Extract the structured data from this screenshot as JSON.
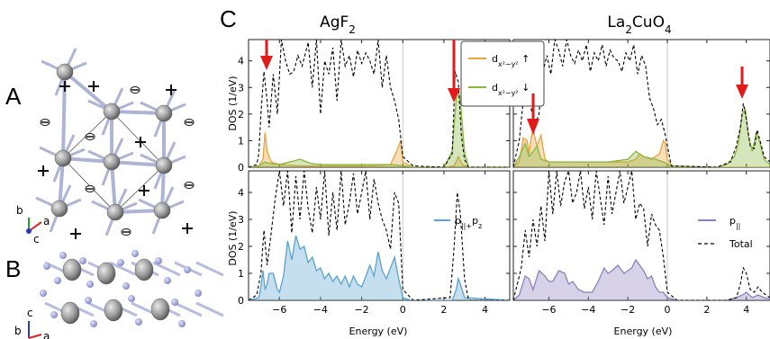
{
  "panels": {
    "A": "A",
    "B": "B",
    "C": "C"
  },
  "titles": {
    "left": "AgF2",
    "right": "La2CuO4"
  },
  "axes": {
    "ylabel_top": "DOS (1/eV)",
    "ylabel_bottom": "DOS (1/eV)",
    "xlabel_left": "Energy (eV)",
    "xlabel_right": "Energy (eV)"
  },
  "legend": {
    "top_up": "dx²−y² ↑",
    "top_down": "dx²−y² ↓",
    "bottom_left": "p||+pz",
    "bottom_right_p": "p||",
    "bottom_right_total": "Total"
  },
  "crystal_axes": {
    "A": {
      "a": "a",
      "b": "b",
      "c": "c"
    },
    "B": {
      "a": "a",
      "b": "b",
      "c": "c"
    }
  },
  "colors": {
    "orange": "#e8a33b",
    "green": "#8ab63f",
    "blue": "#5aa2cf",
    "purple": "#8b7fbe",
    "arrow": "#e11b1b"
  },
  "chart_data": [
    {
      "type": "area",
      "panel": "AgF2-top",
      "xlim": [
        -7.5,
        5.2
      ],
      "ylim": [
        0,
        4.8
      ],
      "xticks": [
        -6,
        -4,
        -2,
        0,
        2,
        4
      ],
      "yticks": [
        0,
        1,
        2,
        3,
        4
      ],
      "series": [
        {
          "name": "dx²−y² ↑",
          "color": "orange",
          "x": [
            -7.5,
            -7.0,
            -6.8,
            -6.7,
            -6.6,
            -6.4,
            -6.0,
            -5.5,
            -5.0,
            -4.0,
            -3.0,
            -2.0,
            -1.5,
            -0.6,
            -0.3,
            -0.2,
            -0.1,
            0.0,
            0.5,
            2.0,
            2.5,
            2.7,
            2.9,
            3.2,
            5.2
          ],
          "y": [
            0,
            0.05,
            0.3,
            1.3,
            0.6,
            0.2,
            0.1,
            0.08,
            0.05,
            0.05,
            0.05,
            0.05,
            0.05,
            0.1,
            0.6,
            0.8,
            1.0,
            0.2,
            0,
            0,
            0.05,
            0.4,
            0.1,
            0,
            0
          ]
        },
        {
          "name": "dx²−y² ↓",
          "color": "green",
          "x": [
            -7.5,
            -7.0,
            -6.7,
            -6.5,
            -6.0,
            -5.5,
            -5.0,
            -4.5,
            -4.0,
            -3.0,
            -2.0,
            -1.5,
            -0.5,
            0.0,
            0.5,
            2.0,
            2.4,
            2.6,
            2.7,
            2.8,
            3.0,
            3.2,
            5.2
          ],
          "y": [
            0,
            0.05,
            0.2,
            0.15,
            0.1,
            0.2,
            0.3,
            0.15,
            0.1,
            0.1,
            0.1,
            0.1,
            0.1,
            0.05,
            0,
            0,
            0.6,
            2.6,
            2.9,
            2.5,
            0.6,
            0,
            0
          ]
        },
        {
          "name": "Total",
          "style": "dashed",
          "x": [
            -7.5,
            -7.1,
            -7.0,
            -6.9,
            -6.75,
            -6.6,
            -6.5,
            -6.3,
            -6.1,
            -5.9,
            -5.7,
            -5.5,
            -5.3,
            -5.1,
            -4.9,
            -4.6,
            -4.4,
            -4.2,
            -4.0,
            -3.8,
            -3.6,
            -3.4,
            -3.2,
            -3.0,
            -2.8,
            -2.6,
            -2.4,
            -2.2,
            -2.0,
            -1.8,
            -1.6,
            -1.4,
            -1.2,
            -1.0,
            -0.8,
            -0.6,
            -0.4,
            -0.2,
            0.0,
            0.5,
            2.0,
            2.4,
            2.55,
            2.7,
            2.85,
            3.0,
            3.2,
            5.2
          ],
          "y": [
            0,
            0.1,
            0.5,
            2.0,
            3.6,
            2.5,
            1.5,
            3.5,
            2.0,
            4.8,
            4.0,
            3.5,
            3.6,
            4.2,
            3.8,
            4.7,
            3.0,
            4.8,
            2.0,
            4.0,
            3.5,
            4.5,
            2.5,
            4.8,
            3.8,
            4.2,
            3.4,
            4.4,
            3.9,
            4.3,
            4.0,
            3.5,
            4.8,
            3.0,
            4.2,
            3.0,
            2.5,
            1.8,
            0.4,
            0.05,
            0,
            0.5,
            3.6,
            3.2,
            1.2,
            0.3,
            0,
            0
          ]
        }
      ]
    },
    {
      "type": "area",
      "panel": "La2CuO4-top",
      "xlim": [
        -7.8,
        5.2
      ],
      "ylim": [
        0,
        4.8
      ],
      "xticks": [
        -6,
        -4,
        -2,
        0,
        2,
        4
      ],
      "series": [
        {
          "name": "dx²−y² ↑",
          "color": "orange",
          "x": [
            -7.8,
            -7.5,
            -7.3,
            -7.1,
            -7.0,
            -6.9,
            -6.8,
            -6.6,
            -6.4,
            -6.2,
            -6.0,
            -5.5,
            -4.5,
            -3.5,
            -2.5,
            -2.0,
            -1.6,
            -1.4,
            -1.2,
            -0.8,
            -0.4,
            -0.2,
            -0.1,
            0.0,
            0.3,
            5.2
          ],
          "y": [
            0,
            0.2,
            1.1,
            1.0,
            0.5,
            1.1,
            1.4,
            0.8,
            1.2,
            0.3,
            0.2,
            0.2,
            0.2,
            0.2,
            0.2,
            0.2,
            0.3,
            0.5,
            0.4,
            0.3,
            0.5,
            1.0,
            0.9,
            0.3,
            0,
            0
          ]
        },
        {
          "name": "dx²−y² ↓",
          "color": "green",
          "x": [
            -7.8,
            -7.5,
            -7.2,
            -7.0,
            -6.8,
            -6.6,
            -6.4,
            -6.0,
            -5.0,
            -4.0,
            -3.0,
            -2.0,
            -1.6,
            -1.2,
            -0.6,
            -0.2,
            0.2,
            2.5,
            3.0,
            3.4,
            3.6,
            3.8,
            3.95,
            4.1,
            4.3,
            4.5,
            4.7,
            4.9,
            5.2
          ],
          "y": [
            0,
            0.4,
            0.9,
            0.4,
            0.6,
            0.8,
            0.3,
            0.2,
            0.2,
            0.2,
            0.2,
            0.3,
            0.6,
            0.4,
            0.3,
            0.2,
            0.05,
            0,
            0.1,
            0.4,
            0.9,
            2.0,
            2.2,
            1.2,
            0.6,
            1.3,
            0.9,
            0.3,
            0.1
          ]
        },
        {
          "name": "Total",
          "style": "dashed",
          "x": [
            -7.8,
            -7.5,
            -7.3,
            -7.1,
            -6.9,
            -6.7,
            -6.5,
            -6.3,
            -6.1,
            -5.9,
            -5.7,
            -5.5,
            -5.3,
            -5.1,
            -4.9,
            -4.7,
            -4.5,
            -4.3,
            -4.1,
            -3.9,
            -3.7,
            -3.5,
            -3.3,
            -3.1,
            -2.9,
            -2.7,
            -2.5,
            -2.3,
            -2.1,
            -1.9,
            -1.7,
            -1.5,
            -1.3,
            -1.1,
            -0.9,
            -0.7,
            -0.5,
            -0.3,
            -0.1,
            0.2,
            2.5,
            3.2,
            3.5,
            3.7,
            3.85,
            4.0,
            4.2,
            4.4,
            4.55,
            4.7,
            4.9,
            5.2
          ],
          "y": [
            0,
            1.0,
            2.5,
            3.0,
            2.2,
            1.6,
            2.0,
            3.6,
            4.2,
            3.5,
            4.8,
            4.4,
            3.8,
            4.8,
            4.2,
            3.9,
            4.4,
            4.0,
            4.6,
            3.6,
            4.3,
            4.0,
            4.6,
            3.8,
            4.4,
            4.1,
            4.0,
            3.6,
            4.3,
            4.0,
            4.6,
            3.5,
            4.2,
            3.8,
            2.6,
            2.2,
            1.6,
            1.8,
            1.2,
            0.05,
            0,
            0.2,
            0.8,
            1.5,
            2.4,
            1.8,
            0.8,
            0.7,
            1.4,
            1.0,
            0.4,
            0.2
          ]
        }
      ]
    },
    {
      "type": "area",
      "panel": "AgF2-bottom",
      "xlim": [
        -7.5,
        5.2
      ],
      "ylim": [
        0,
        4.8
      ],
      "series": [
        {
          "name": "p||+pz",
          "color": "blue",
          "x": [
            -7.5,
            -7.0,
            -6.9,
            -6.8,
            -6.7,
            -6.6,
            -6.5,
            -6.3,
            -6.1,
            -6.0,
            -5.8,
            -5.6,
            -5.4,
            -5.2,
            -5.0,
            -4.8,
            -4.6,
            -4.4,
            -4.2,
            -4.0,
            -3.8,
            -3.6,
            -3.4,
            -3.2,
            -3.0,
            -2.8,
            -2.6,
            -2.4,
            -2.2,
            -2.0,
            -1.8,
            -1.6,
            -1.4,
            -1.2,
            -1.0,
            -0.8,
            -0.6,
            -0.4,
            -0.2,
            0.0,
            0.4,
            2.4,
            2.6,
            2.7,
            2.8,
            3.0,
            5.2
          ],
          "y": [
            0,
            0.1,
            0.5,
            1.1,
            0.4,
            0.6,
            1.0,
            1.0,
            0.4,
            0.3,
            0.9,
            2.2,
            1.5,
            2.4,
            1.9,
            2.0,
            1.4,
            1.6,
            1.1,
            1.2,
            0.8,
            1.0,
            0.7,
            0.9,
            0.6,
            0.9,
            0.5,
            0.9,
            0.6,
            0.5,
            0.9,
            1.3,
            0.9,
            1.8,
            1.1,
            0.8,
            1.2,
            1.6,
            0.8,
            0.1,
            0,
            0,
            0.4,
            0.8,
            0.6,
            0.1,
            0
          ]
        },
        {
          "name": "Total",
          "style": "dashed",
          "x": [
            -7.5,
            -7.1,
            -6.9,
            -6.75,
            -6.6,
            -6.4,
            -6.2,
            -6.0,
            -5.8,
            -5.6,
            -5.4,
            -5.2,
            -5.0,
            -4.8,
            -4.6,
            -4.4,
            -4.2,
            -4.0,
            -3.8,
            -3.6,
            -3.4,
            -3.2,
            -3.0,
            -2.8,
            -2.6,
            -2.4,
            -2.2,
            -2.0,
            -1.8,
            -1.6,
            -1.4,
            -1.2,
            -1.0,
            -0.8,
            -0.6,
            -0.4,
            -0.2,
            0.0,
            0.5,
            2.3,
            2.5,
            2.65,
            2.8,
            3.0,
            3.2,
            5.2
          ],
          "y": [
            0,
            0.2,
            1.0,
            2.6,
            1.3,
            2.5,
            3.8,
            4.8,
            3.5,
            4.8,
            2.5,
            4.6,
            3.0,
            4.8,
            3.4,
            2.5,
            4.2,
            3.0,
            4.8,
            2.4,
            4.0,
            2.6,
            4.8,
            2.8,
            3.6,
            4.7,
            3.2,
            4.0,
            4.8,
            3.0,
            4.5,
            3.6,
            3.0,
            2.6,
            1.9,
            4.0,
            3.6,
            0.4,
            0,
            0.1,
            2.0,
            4.0,
            3.2,
            0.8,
            0,
            0
          ]
        }
      ]
    },
    {
      "type": "area",
      "panel": "La2CuO4-bottom",
      "xlim": [
        -7.8,
        5.2
      ],
      "ylim": [
        0,
        4.8
      ],
      "series": [
        {
          "name": "p||",
          "color": "purple",
          "x": [
            -7.8,
            -7.5,
            -7.2,
            -7.0,
            -6.8,
            -6.5,
            -6.2,
            -6.0,
            -5.8,
            -5.5,
            -5.2,
            -5.0,
            -4.8,
            -4.5,
            -4.2,
            -4.0,
            -3.8,
            -3.5,
            -3.2,
            -3.0,
            -2.8,
            -2.5,
            -2.2,
            -2.0,
            -1.8,
            -1.6,
            -1.4,
            -1.2,
            -1.0,
            -0.8,
            -0.6,
            -0.4,
            -0.2,
            0.0,
            0.5,
            3.0,
            3.5,
            3.8,
            4.0,
            4.3,
            4.6,
            4.9,
            5.2
          ],
          "y": [
            0,
            0.2,
            0.9,
            0.8,
            0.4,
            1.1,
            0.9,
            0.7,
            0.7,
            1.1,
            1.0,
            0.6,
            0.7,
            0.4,
            0.3,
            0.3,
            0.3,
            0.7,
            1.2,
            1.0,
            1.1,
            1.3,
            1.0,
            1.1,
            1.2,
            1.5,
            1.3,
            1.1,
            0.8,
            0.9,
            0.5,
            0.3,
            0.3,
            0.1,
            0,
            0,
            0.1,
            0.2,
            0.3,
            0.1,
            0.2,
            0.1,
            0.05
          ]
        },
        {
          "name": "Total",
          "style": "dashed",
          "x": [
            -7.8,
            -7.4,
            -7.2,
            -7.0,
            -6.8,
            -6.6,
            -6.4,
            -6.2,
            -6.0,
            -5.8,
            -5.6,
            -5.4,
            -5.2,
            -5.0,
            -4.8,
            -4.6,
            -4.4,
            -4.2,
            -4.0,
            -3.8,
            -3.6,
            -3.4,
            -3.2,
            -3.0,
            -2.8,
            -2.6,
            -2.4,
            -2.2,
            -2.0,
            -1.8,
            -1.6,
            -1.4,
            -1.2,
            -1.0,
            -0.8,
            -0.6,
            -0.4,
            -0.2,
            0.0,
            0.5,
            3.0,
            3.5,
            3.7,
            3.85,
            4.0,
            4.2,
            4.4,
            4.6,
            4.8,
            5.0,
            5.2
          ],
          "y": [
            0,
            1.2,
            2.6,
            1.6,
            3.0,
            2.0,
            3.5,
            2.2,
            4.8,
            3.2,
            4.8,
            3.5,
            4.4,
            4.8,
            3.6,
            4.0,
            4.8,
            3.4,
            4.2,
            3.0,
            4.8,
            3.8,
            2.8,
            4.6,
            3.2,
            4.0,
            4.8,
            3.6,
            4.2,
            4.8,
            3.0,
            3.6,
            3.4,
            2.0,
            3.2,
            2.8,
            2.6,
            1.6,
            0.3,
            0,
            0,
            0.1,
            0.6,
            1.2,
            1.0,
            0.4,
            0.3,
            0.5,
            0.3,
            0.2,
            0.1
          ]
        }
      ]
    }
  ]
}
